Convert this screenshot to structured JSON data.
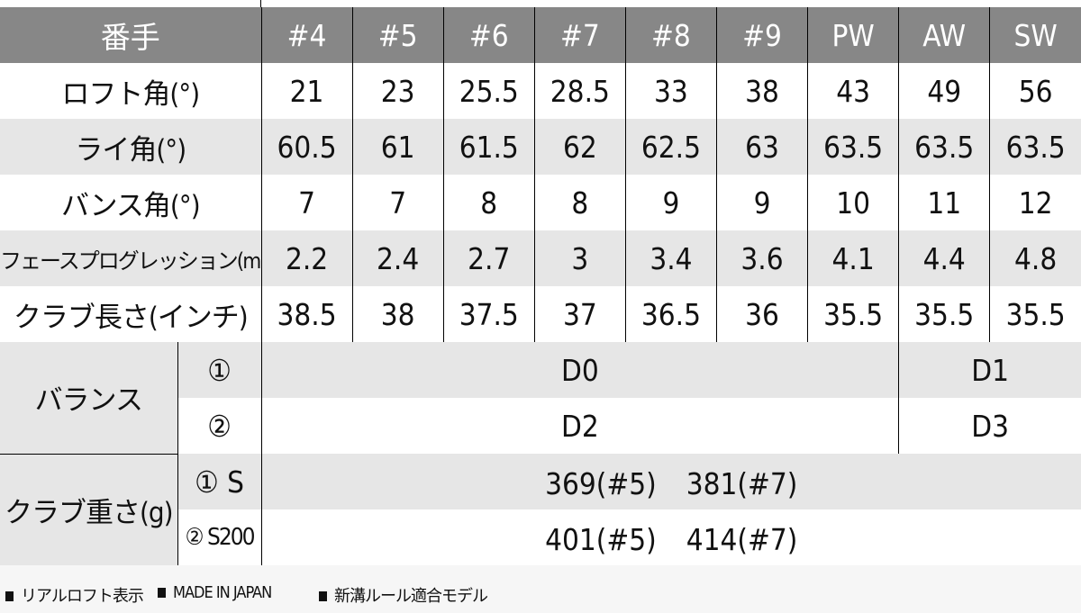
{
  "header": {
    "label": "番手",
    "columns": [
      "#4",
      "#5",
      "#6",
      "#7",
      "#8",
      "#9",
      "PW",
      "AW",
      "SW"
    ]
  },
  "rows": [
    {
      "label": "ロフト角(°)",
      "values": [
        "21",
        "23",
        "25.5",
        "28.5",
        "33",
        "38",
        "43",
        "49",
        "56"
      ]
    },
    {
      "label": "ライ角(°)",
      "values": [
        "60.5",
        "61",
        "61.5",
        "62",
        "62.5",
        "63",
        "63.5",
        "63.5",
        "63.5"
      ]
    },
    {
      "label": "バンス角(°)",
      "values": [
        "7",
        "7",
        "8",
        "8",
        "9",
        "9",
        "10",
        "11",
        "12"
      ]
    },
    {
      "label": "フェースプログレッション(mm)",
      "values": [
        "2.2",
        "2.4",
        "2.7",
        "3",
        "3.4",
        "3.6",
        "4.1",
        "4.4",
        "4.8"
      ]
    },
    {
      "label": "クラブ長さ(インチ)",
      "values": [
        "38.5",
        "38",
        "37.5",
        "37",
        "36.5",
        "36",
        "35.5",
        "35.5",
        "35.5"
      ]
    }
  ],
  "balance": {
    "label": "バランス",
    "options": [
      {
        "key": "①",
        "irons": "D0",
        "wedges": "D1"
      },
      {
        "key": "②",
        "irons": "D2",
        "wedges": "D3"
      }
    ]
  },
  "weight": {
    "label": "クラブ重さ(g)",
    "options": [
      {
        "key": "① S",
        "value": "369(#5)　381(#7)"
      },
      {
        "key": "② S200",
        "value": "401(#5)　414(#7)"
      }
    ]
  },
  "footer": [
    "リアルロフト表示",
    "MADE IN JAPAN",
    "新溝ルール適合モデル"
  ],
  "colors": {
    "header_bg": "#878787",
    "stripe": "#e6e6e6"
  }
}
